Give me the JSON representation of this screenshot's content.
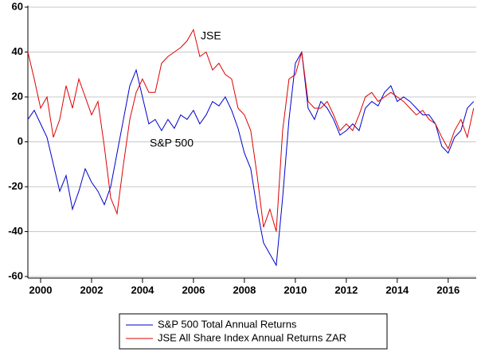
{
  "chart_data": {
    "type": "line",
    "x": [
      1999.5,
      1999.75,
      2000,
      2000.25,
      2000.5,
      2000.75,
      2001,
      2001.25,
      2001.5,
      2001.75,
      2002,
      2002.25,
      2002.5,
      2002.75,
      2003,
      2003.25,
      2003.5,
      2003.75,
      2004,
      2004.25,
      2004.5,
      2004.75,
      2005,
      2005.25,
      2005.5,
      2005.75,
      2006,
      2006.25,
      2006.5,
      2006.75,
      2007,
      2007.25,
      2007.5,
      2007.75,
      2008,
      2008.25,
      2008.5,
      2008.75,
      2009,
      2009.25,
      2009.5,
      2009.75,
      2010,
      2010.25,
      2010.5,
      2010.75,
      2011,
      2011.25,
      2011.5,
      2011.75,
      2012,
      2012.25,
      2012.5,
      2012.75,
      2013,
      2013.25,
      2013.5,
      2013.75,
      2014,
      2014.25,
      2014.5,
      2014.75,
      2015,
      2015.25,
      2015.5,
      2015.75,
      2016,
      2016.25,
      2016.5,
      2016.75,
      2017
    ],
    "series": [
      {
        "name": "S&P 500 Total Annual Returns",
        "color": "#0000cc",
        "values": [
          10,
          14,
          8,
          2,
          -10,
          -22,
          -15,
          -30,
          -22,
          -12,
          -18,
          -22,
          -28,
          -20,
          -5,
          10,
          25,
          32,
          20,
          8,
          10,
          5,
          10,
          6,
          12,
          10,
          14,
          8,
          12,
          18,
          16,
          20,
          14,
          6,
          -5,
          -12,
          -30,
          -45,
          -50,
          -55,
          -25,
          10,
          35,
          40,
          15,
          10,
          18,
          15,
          10,
          3,
          5,
          8,
          5,
          15,
          18,
          16,
          22,
          25,
          18,
          20,
          18,
          15,
          12,
          12,
          8,
          -2,
          -5,
          2,
          5,
          15,
          18
        ]
      },
      {
        "name": "JSE All Share Index Annual Returns ZAR",
        "color": "#e00000",
        "values": [
          40,
          28,
          15,
          20,
          2,
          10,
          25,
          15,
          28,
          20,
          12,
          18,
          -2,
          -25,
          -32,
          -10,
          10,
          22,
          28,
          22,
          22,
          35,
          38,
          40,
          42,
          45,
          50,
          38,
          40,
          32,
          35,
          30,
          28,
          15,
          12,
          5,
          -15,
          -38,
          -30,
          -40,
          5,
          28,
          30,
          40,
          18,
          15,
          15,
          18,
          12,
          5,
          8,
          5,
          12,
          20,
          22,
          18,
          20,
          22,
          20,
          18,
          15,
          12,
          14,
          10,
          8,
          2,
          -3,
          5,
          10,
          2,
          15
        ]
      }
    ],
    "annotations": [
      "JSE",
      "S&P 500"
    ],
    "xlim": [
      1999.5,
      2017.1
    ],
    "xticks": [
      2000,
      2002,
      2004,
      2006,
      2008,
      2010,
      2012,
      2014,
      2016
    ],
    "ylim": [
      -60,
      60
    ],
    "yticks": [
      -60,
      -40,
      -20,
      0,
      20,
      40,
      60
    ],
    "grid": true
  }
}
